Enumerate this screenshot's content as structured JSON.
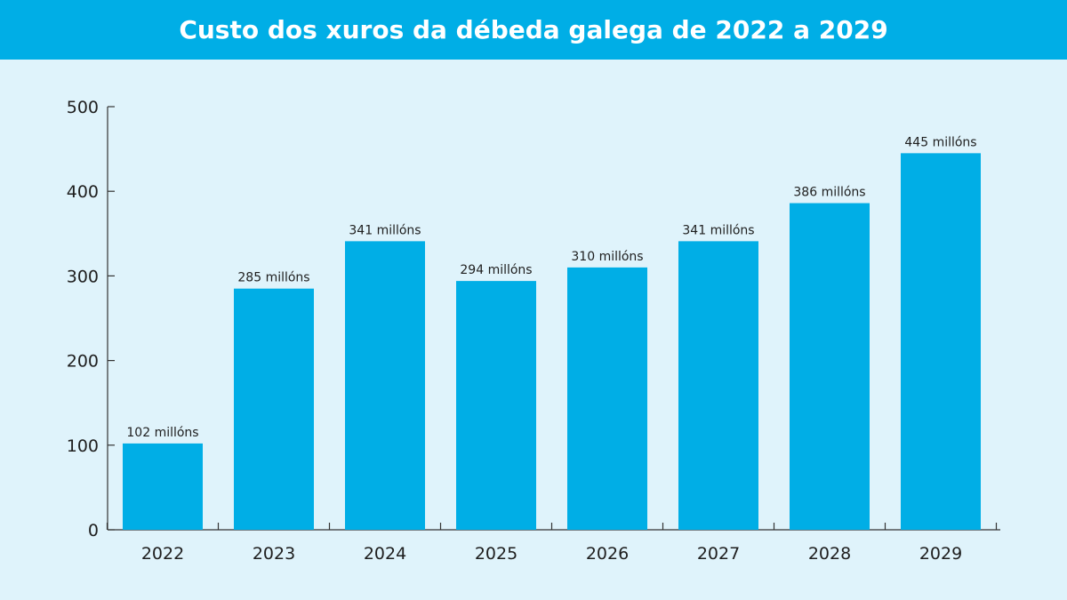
{
  "header": {
    "title": "Custo dos xuros da débeda galega de 2022 a 2029"
  },
  "colors": {
    "bar": "#00aee6",
    "title_bar": "#00aee6",
    "background": "#dff3fb",
    "axis": "#333333",
    "text": "#1e1e1e"
  },
  "chart_data": {
    "type": "bar",
    "title": "Custo dos xuros da débeda galega de 2022 a 2029",
    "xlabel": "",
    "ylabel": "",
    "categories": [
      "2022",
      "2023",
      "2024",
      "2025",
      "2026",
      "2027",
      "2028",
      "2029"
    ],
    "values": [
      102,
      285,
      341,
      294,
      310,
      341,
      386,
      445
    ],
    "data_labels": [
      "102 millóns",
      "285 millóns",
      "341 millóns",
      "294 millóns",
      "310 millóns",
      "341 millóns",
      "386 millóns",
      "445 millóns"
    ],
    "ylim": [
      0,
      500
    ],
    "yticks": [
      0,
      100,
      200,
      300,
      400,
      500
    ],
    "grid": false,
    "legend": "none"
  }
}
